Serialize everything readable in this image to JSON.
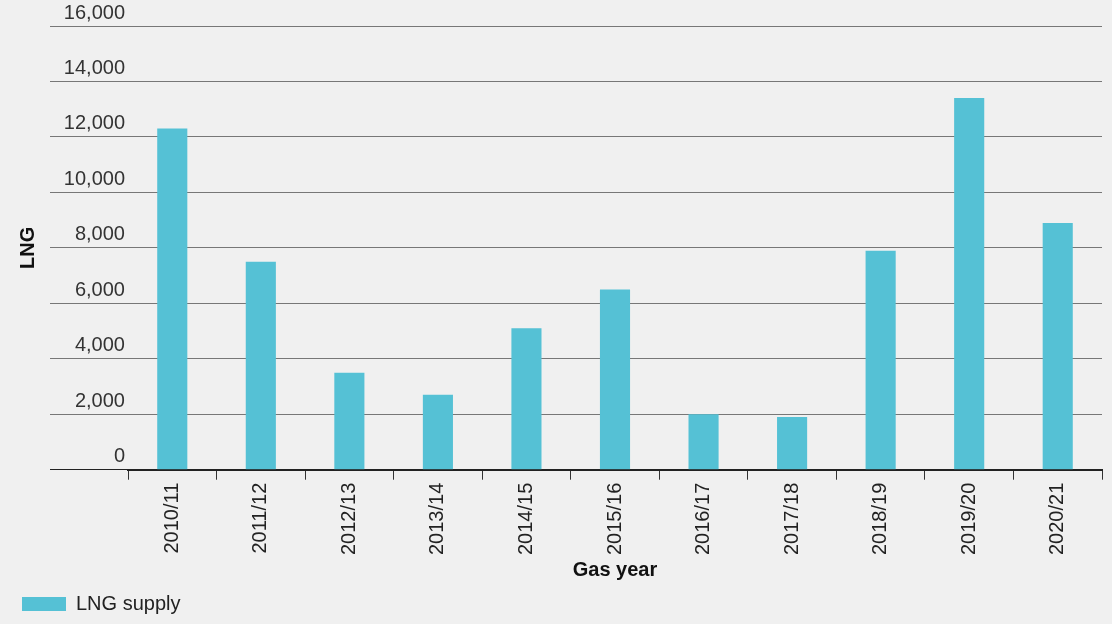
{
  "chart_data": {
    "type": "bar",
    "xlabel": "Gas year",
    "ylabel": "LNG",
    "categories": [
      "2010/11",
      "2011/12",
      "2012/13",
      "2013/14",
      "2014/15",
      "2015/16",
      "2016/17",
      "2017/18",
      "2018/19",
      "2019/20",
      "2020/21"
    ],
    "series": [
      {
        "name": "LNG supply",
        "color": "#55c1d5",
        "values": [
          12300,
          7500,
          3500,
          2700,
          5100,
          6500,
          2000,
          1900,
          7900,
          13400,
          8900
        ]
      }
    ],
    "ylim": [
      0,
      16000
    ],
    "yticks": [
      0,
      {
        "value": 2000,
        "label": "2,000"
      },
      {
        "value": 4000,
        "label": "4,000"
      },
      {
        "value": 6000,
        "label": "6,000"
      },
      {
        "value": 8000,
        "label": "8,000"
      },
      {
        "value": 10000,
        "label": "10,000"
      },
      {
        "value": 12000,
        "label": "12,000"
      },
      {
        "value": 14000,
        "label": "14,000"
      },
      {
        "value": 16000,
        "label": "16,000"
      }
    ],
    "grid": "y",
    "legend": "bottom left"
  }
}
